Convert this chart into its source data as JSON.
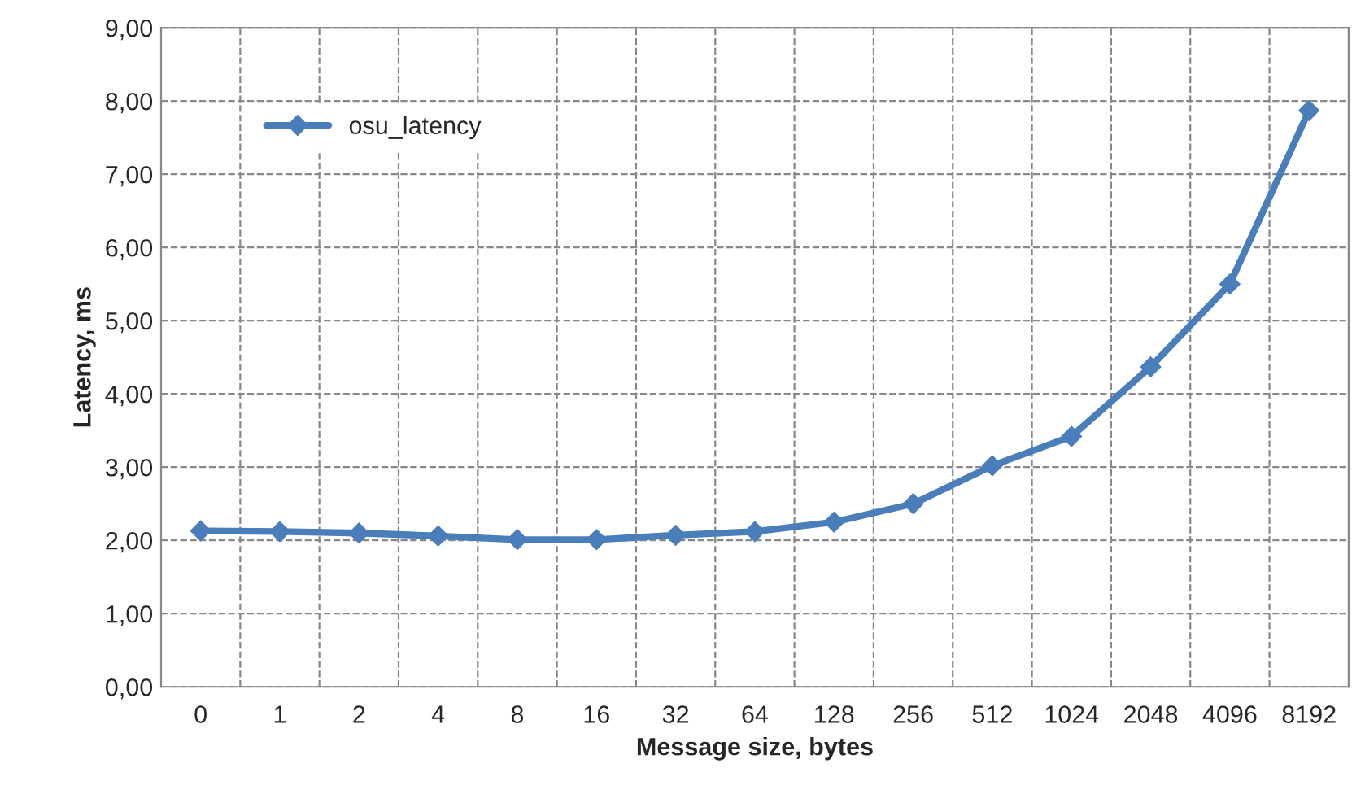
{
  "chart_data": {
    "type": "line",
    "xlabel": "Message size, bytes",
    "ylabel": "Latency, ms",
    "categories": [
      "0",
      "1",
      "2",
      "4",
      "8",
      "16",
      "32",
      "64",
      "128",
      "256",
      "512",
      "1024",
      "2048",
      "4096",
      "8192"
    ],
    "series": [
      {
        "name": "osu_latency",
        "color": "#4a7ebb",
        "values": [
          2.13,
          2.12,
          2.1,
          2.06,
          2.01,
          2.01,
          2.07,
          2.12,
          2.25,
          2.5,
          3.02,
          3.42,
          4.37,
          5.5,
          7.87
        ]
      }
    ],
    "ylim": [
      0,
      9
    ],
    "yticks": [
      {
        "value": 0,
        "label": "0,00"
      },
      {
        "value": 1,
        "label": "1,00"
      },
      {
        "value": 2,
        "label": "2,00"
      },
      {
        "value": 3,
        "label": "3,00"
      },
      {
        "value": 4,
        "label": "4,00"
      },
      {
        "value": 5,
        "label": "5,00"
      },
      {
        "value": 6,
        "label": "6,00"
      },
      {
        "value": 7,
        "label": "7,00"
      },
      {
        "value": 8,
        "label": "8,00"
      },
      {
        "value": 9,
        "label": "9,00"
      }
    ],
    "grid": true,
    "legend": "top left",
    "marker": "diamond",
    "line_style": "solid"
  }
}
